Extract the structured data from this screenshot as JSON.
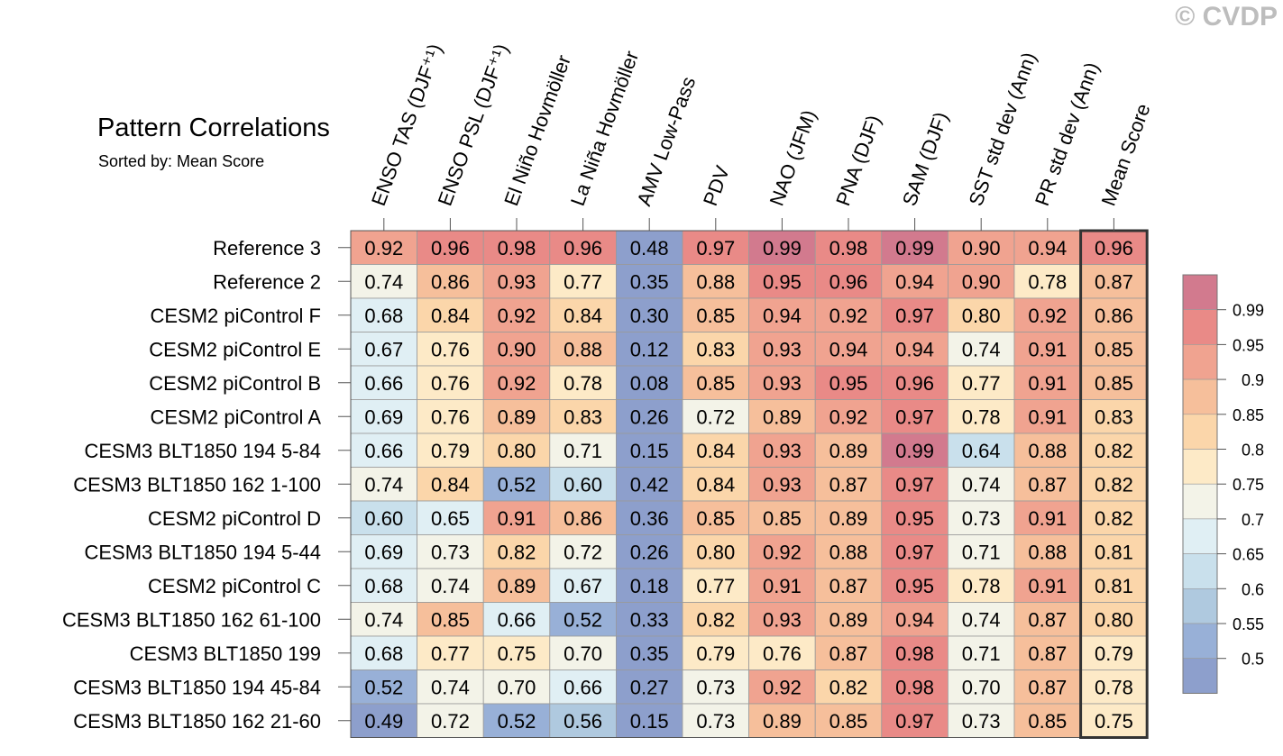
{
  "watermark": "© CVDP",
  "chart_data": {
    "type": "heatmap",
    "title": "Pattern Correlations",
    "subtitle": "Sorted by: Mean Score",
    "columns": [
      "ENSO TAS (DJF⁺¹)",
      "ENSO PSL (DJF⁺¹)",
      "El Niño Hovmöller",
      "La Niña Hovmöller",
      "AMV Low-Pass",
      "PDV",
      "NAO (JFM)",
      "PNA (DJF)",
      "SAM (DJF)",
      "SST std dev (Ann)",
      "PR std dev (Ann)",
      "Mean Score"
    ],
    "rows": [
      "Reference 3",
      "Reference 2",
      "CESM2 piControl F",
      "CESM2 piControl E",
      "CESM2 piControl B",
      "CESM2 piControl A",
      "CESM3 BLT1850 194 5-84",
      "CESM3 BLT1850 162 1-100",
      "CESM2 piControl D",
      "CESM3 BLT1850 194 5-44",
      "CESM2 piControl C",
      "CESM3 BLT1850 162 61-100",
      "CESM3 BLT1850 199",
      "CESM3 BLT1850 194 45-84",
      "CESM3 BLT1850 162 21-60"
    ],
    "values": [
      [
        "0.92",
        "0.96",
        "0.98",
        "0.96",
        "0.48",
        "0.97",
        "0.99",
        "0.98",
        "0.99",
        "0.90",
        "0.94",
        "0.96"
      ],
      [
        "0.74",
        "0.86",
        "0.93",
        "0.77",
        "0.35",
        "0.88",
        "0.95",
        "0.96",
        "0.94",
        "0.90",
        "0.78",
        "0.87"
      ],
      [
        "0.68",
        "0.84",
        "0.92",
        "0.84",
        "0.30",
        "0.85",
        "0.94",
        "0.92",
        "0.97",
        "0.80",
        "0.92",
        "0.86"
      ],
      [
        "0.67",
        "0.76",
        "0.90",
        "0.88",
        "0.12",
        "0.83",
        "0.93",
        "0.94",
        "0.94",
        "0.74",
        "0.91",
        "0.85"
      ],
      [
        "0.66",
        "0.76",
        "0.92",
        "0.78",
        "0.08",
        "0.85",
        "0.93",
        "0.95",
        "0.96",
        "0.77",
        "0.91",
        "0.85"
      ],
      [
        "0.69",
        "0.76",
        "0.89",
        "0.83",
        "0.26",
        "0.72",
        "0.89",
        "0.92",
        "0.97",
        "0.78",
        "0.91",
        "0.83"
      ],
      [
        "0.66",
        "0.79",
        "0.80",
        "0.71",
        "0.15",
        "0.84",
        "0.93",
        "0.89",
        "0.99",
        "0.64",
        "0.88",
        "0.82"
      ],
      [
        "0.74",
        "0.84",
        "0.52",
        "0.60",
        "0.42",
        "0.84",
        "0.93",
        "0.87",
        "0.97",
        "0.74",
        "0.87",
        "0.82"
      ],
      [
        "0.60",
        "0.65",
        "0.91",
        "0.86",
        "0.36",
        "0.85",
        "0.85",
        "0.89",
        "0.95",
        "0.73",
        "0.91",
        "0.82"
      ],
      [
        "0.69",
        "0.73",
        "0.82",
        "0.72",
        "0.26",
        "0.80",
        "0.92",
        "0.88",
        "0.97",
        "0.71",
        "0.88",
        "0.81"
      ],
      [
        "0.68",
        "0.74",
        "0.89",
        "0.67",
        "0.18",
        "0.77",
        "0.91",
        "0.87",
        "0.95",
        "0.78",
        "0.91",
        "0.81"
      ],
      [
        "0.74",
        "0.85",
        "0.66",
        "0.52",
        "0.33",
        "0.82",
        "0.93",
        "0.89",
        "0.94",
        "0.74",
        "0.87",
        "0.80"
      ],
      [
        "0.68",
        "0.77",
        "0.75",
        "0.70",
        "0.35",
        "0.79",
        "0.76",
        "0.87",
        "0.98",
        "0.71",
        "0.87",
        "0.79"
      ],
      [
        "0.52",
        "0.74",
        "0.70",
        "0.66",
        "0.27",
        "0.73",
        "0.92",
        "0.82",
        "0.98",
        "0.70",
        "0.87",
        "0.78"
      ],
      [
        "0.49",
        "0.72",
        "0.52",
        "0.56",
        "0.15",
        "0.73",
        "0.89",
        "0.85",
        "0.97",
        "0.73",
        "0.85",
        "0.75"
      ]
    ],
    "colorbar": {
      "levels": [
        "0.99",
        "0.95",
        "0.9",
        "0.85",
        "0.8",
        "0.75",
        "0.7",
        "0.65",
        "0.6",
        "0.55",
        "0.5"
      ],
      "thresholds": [
        0.99,
        0.95,
        0.9,
        0.85,
        0.8,
        0.75,
        0.7,
        0.65,
        0.6,
        0.55,
        0.5
      ],
      "colors": [
        "#d27a8e",
        "#e98a87",
        "#f0a390",
        "#f6bf9b",
        "#fbd6aa",
        "#fdeac7",
        "#f3f3e8",
        "#e0eff4",
        "#c9e0ec",
        "#afc9df",
        "#98b0d7",
        "#8d9fcc"
      ]
    },
    "highlighted_column": "Mean Score"
  }
}
